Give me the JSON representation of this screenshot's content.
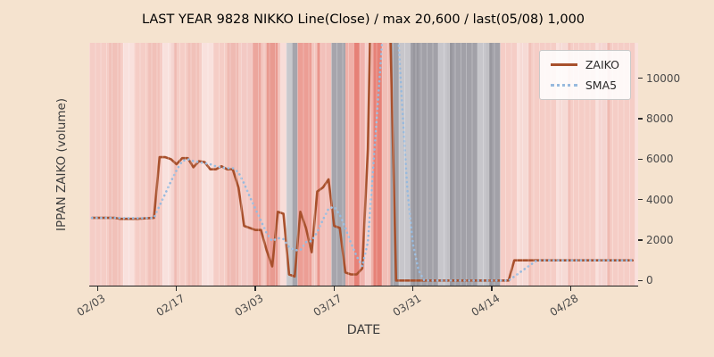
{
  "chart_data": {
    "type": "line",
    "title": "LAST YEAR 9828 NIKKO Line(Close) / max 20,600 / last(05/08) 1,000",
    "xlabel": "DATE",
    "ylabel": "IPPAN ZAIKO (volume)",
    "legend_position": "upper right",
    "grid": false,
    "xlim": [
      -1.5,
      96
    ],
    "ylim": [
      -250,
      11750
    ],
    "y_ticks": [
      0,
      2000,
      4000,
      6000,
      8000,
      10000
    ],
    "x_ticks": [
      {
        "day": 0,
        "label": "02/03"
      },
      {
        "day": 14,
        "label": "02/17"
      },
      {
        "day": 28,
        "label": "03/03"
      },
      {
        "day": 42,
        "label": "03/17"
      },
      {
        "day": 56,
        "label": "03/31"
      },
      {
        "day": 70,
        "label": "04/14"
      },
      {
        "day": 84,
        "label": "04/28"
      }
    ],
    "max_value": 20600,
    "last_label": "last(05/08) 1,000",
    "colors": {
      "figure_bg": "#f5e3cf",
      "plot_bg": "#f5cdc6",
      "zaiko": "#a8502c",
      "sma5": "#97bade",
      "gray_band": "#a2a1a8"
    },
    "series": [
      {
        "name": "ZAIKO",
        "style": "solid",
        "color": "#a8502c",
        "points": [
          [
            -1,
            3100
          ],
          [
            0,
            3100
          ],
          [
            3,
            3100
          ],
          [
            4,
            3050
          ],
          [
            7,
            3050
          ],
          [
            10,
            3100
          ],
          [
            11,
            6100
          ],
          [
            12,
            6100
          ],
          [
            13,
            6000
          ],
          [
            14,
            5750
          ],
          [
            15,
            6050
          ],
          [
            16,
            6050
          ],
          [
            17,
            5600
          ],
          [
            18,
            5900
          ],
          [
            19,
            5850
          ],
          [
            20,
            5500
          ],
          [
            21,
            5500
          ],
          [
            22,
            5650
          ],
          [
            23,
            5500
          ],
          [
            24,
            5500
          ],
          [
            25,
            4600
          ],
          [
            26,
            2700
          ],
          [
            27,
            2600
          ],
          [
            28,
            2500
          ],
          [
            29,
            2500
          ],
          [
            30,
            1500
          ],
          [
            31,
            700
          ],
          [
            32,
            3400
          ],
          [
            33,
            3300
          ],
          [
            34,
            300
          ],
          [
            35,
            200
          ],
          [
            36,
            3400
          ],
          [
            37,
            2600
          ],
          [
            38,
            1400
          ],
          [
            39,
            4400
          ],
          [
            40,
            4600
          ],
          [
            41,
            5000
          ],
          [
            42,
            2700
          ],
          [
            43,
            2600
          ],
          [
            44,
            400
          ],
          [
            45,
            300
          ],
          [
            46,
            300
          ],
          [
            47,
            600
          ],
          [
            48,
            6500
          ],
          [
            49,
            20600
          ],
          [
            50,
            20600
          ],
          [
            51,
            20600
          ],
          [
            52,
            12000
          ],
          [
            53,
            0
          ],
          [
            55,
            0
          ],
          [
            73,
            0
          ],
          [
            74,
            1000
          ],
          [
            95,
            1000
          ]
        ]
      },
      {
        "name": "SMA5",
        "style": "dotted",
        "color": "#97bade",
        "points": [
          [
            -1,
            3100
          ],
          [
            3,
            3100
          ],
          [
            7,
            3080
          ],
          [
            10,
            3100
          ],
          [
            11,
            3700
          ],
          [
            12,
            4300
          ],
          [
            13,
            4900
          ],
          [
            14,
            5450
          ],
          [
            15,
            5900
          ],
          [
            16,
            6000
          ],
          [
            17,
            5900
          ],
          [
            18,
            5850
          ],
          [
            19,
            5800
          ],
          [
            20,
            5750
          ],
          [
            21,
            5650
          ],
          [
            22,
            5600
          ],
          [
            23,
            5550
          ],
          [
            24,
            5550
          ],
          [
            25,
            5350
          ],
          [
            26,
            4800
          ],
          [
            27,
            4150
          ],
          [
            28,
            3550
          ],
          [
            29,
            2950
          ],
          [
            30,
            2350
          ],
          [
            31,
            1950
          ],
          [
            32,
            2100
          ],
          [
            33,
            2050
          ],
          [
            34,
            1650
          ],
          [
            35,
            1500
          ],
          [
            36,
            1500
          ],
          [
            37,
            1900
          ],
          [
            38,
            1950
          ],
          [
            39,
            2400
          ],
          [
            40,
            3000
          ],
          [
            41,
            3550
          ],
          [
            42,
            3650
          ],
          [
            43,
            3250
          ],
          [
            44,
            2600
          ],
          [
            45,
            1850
          ],
          [
            46,
            1200
          ],
          [
            47,
            700
          ],
          [
            48,
            1900
          ],
          [
            49,
            5800
          ],
          [
            50,
            9700
          ],
          [
            51,
            13700
          ],
          [
            52,
            16100
          ],
          [
            53,
            14000
          ],
          [
            54,
            9000
          ],
          [
            55,
            4500
          ],
          [
            56,
            1800
          ],
          [
            57,
            500
          ],
          [
            58,
            0
          ],
          [
            73,
            0
          ],
          [
            74,
            200
          ],
          [
            75,
            400
          ],
          [
            76,
            600
          ],
          [
            77,
            800
          ],
          [
            78,
            1000
          ],
          [
            95,
            1000
          ]
        ]
      }
    ],
    "bands": [
      {
        "from": 2,
        "to": 4,
        "color": "#f1c1b9"
      },
      {
        "from": 9,
        "to": 11,
        "color": "#f1c1b9"
      },
      {
        "from": 13,
        "to": 14,
        "color": "#efbab2"
      },
      {
        "from": 16,
        "to": 18,
        "color": "#f1c1b9"
      },
      {
        "from": 23,
        "to": 25,
        "color": "#efbab2"
      },
      {
        "from": 25.5,
        "to": 29,
        "color": "#eca69d"
      },
      {
        "from": 29,
        "to": 30,
        "color": "#f3c6bf"
      },
      {
        "from": 30,
        "to": 32,
        "color": "#e99a90"
      },
      {
        "from": 32,
        "to": 33.5,
        "color": "#f3c6bf"
      },
      {
        "from": 33.5,
        "to": 35.5,
        "color": "#a6a5ac"
      },
      {
        "from": 35.5,
        "to": 38,
        "color": "#ec9e95"
      },
      {
        "from": 38,
        "to": 39,
        "color": "#f3c6bf"
      },
      {
        "from": 39,
        "to": 41.5,
        "color": "#ea968c"
      },
      {
        "from": 41.5,
        "to": 44,
        "color": "#a6a5ac"
      },
      {
        "from": 44,
        "to": 45.5,
        "color": "#efb0a8"
      },
      {
        "from": 45.5,
        "to": 47.5,
        "color": "#e68177"
      },
      {
        "from": 47.5,
        "to": 49,
        "color": "#efb0a8"
      },
      {
        "from": 49,
        "to": 50.5,
        "color": "#e68177"
      },
      {
        "from": 50.5,
        "to": 52,
        "color": "#f1beb6"
      },
      {
        "from": 52,
        "to": 71.5,
        "color": "#a2a1a8"
      },
      {
        "from": 56,
        "to": 57,
        "color": "#98979e"
      },
      {
        "from": 62,
        "to": 63,
        "color": "#98979e"
      },
      {
        "from": 69,
        "to": 70,
        "color": "#98979e"
      },
      {
        "from": 75,
        "to": 77,
        "color": "#f1c1b9"
      },
      {
        "from": 82,
        "to": 84,
        "color": "#f1c1b9"
      },
      {
        "from": 89,
        "to": 91,
        "color": "#efbab2"
      }
    ],
    "weekend_stripes": {
      "start": 4.5,
      "period": 7,
      "width": 2,
      "color": "#ffffff",
      "opacity": 0.4
    }
  },
  "legend": {
    "items": [
      {
        "label": "ZAIKO"
      },
      {
        "label": "SMA5"
      }
    ]
  }
}
